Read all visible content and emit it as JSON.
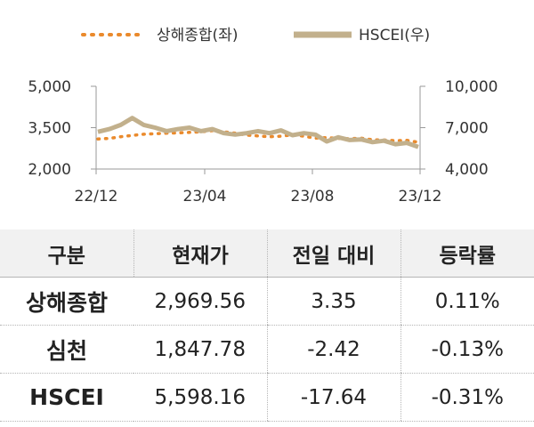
{
  "chart_data": {
    "type": "line",
    "legend": [
      {
        "name": "상해종합(좌)",
        "color": "#ea8a2c",
        "style": "dotted"
      },
      {
        "name": "HSCEI(우)",
        "color": "#c2b08c",
        "style": "thick-line"
      }
    ],
    "legend_position": "top",
    "x_tick_labels": [
      "22/12",
      "23/04",
      "23/08",
      "23/12"
    ],
    "y_left": {
      "ticks": [
        5000,
        3500,
        2000
      ],
      "labels": [
        "5,000",
        "3,500",
        "2,000"
      ],
      "range": [
        2000,
        5000
      ]
    },
    "y_right": {
      "ticks": [
        10000,
        7000,
        4000
      ],
      "labels": [
        "10,000",
        "7,000",
        "4,000"
      ],
      "range": [
        4000,
        10000
      ]
    },
    "series": [
      {
        "name": "상해종합(좌)",
        "axis": "left",
        "values": [
          3090,
          3110,
          3170,
          3220,
          3260,
          3280,
          3300,
          3310,
          3330,
          3350,
          3390,
          3350,
          3300,
          3230,
          3200,
          3170,
          3190,
          3240,
          3190,
          3120,
          3140,
          3110,
          3100,
          3120,
          3060,
          3050,
          3030,
          3040,
          2970
        ]
      },
      {
        "name": "HSCEI(우)",
        "axis": "right",
        "values": [
          6700,
          6900,
          7200,
          7700,
          7200,
          7000,
          6750,
          6900,
          7000,
          6750,
          6900,
          6600,
          6500,
          6600,
          6750,
          6600,
          6800,
          6450,
          6600,
          6500,
          6000,
          6300,
          6100,
          6150,
          5950,
          6050,
          5800,
          5900,
          5600
        ]
      }
    ],
    "grid": false
  },
  "table": {
    "headers": [
      "구분",
      "현재가",
      "전일 대비",
      "등락률"
    ],
    "rows": [
      {
        "name": "상해종합",
        "price": "2,969.56",
        "change": "3.35",
        "pct": "0.11%"
      },
      {
        "name": "심천",
        "price": "1,847.78",
        "change": "-2.42",
        "pct": "-0.13%"
      },
      {
        "name": "HSCEI",
        "price": "5,598.16",
        "change": "-17.64",
        "pct": "-0.31%"
      }
    ]
  }
}
